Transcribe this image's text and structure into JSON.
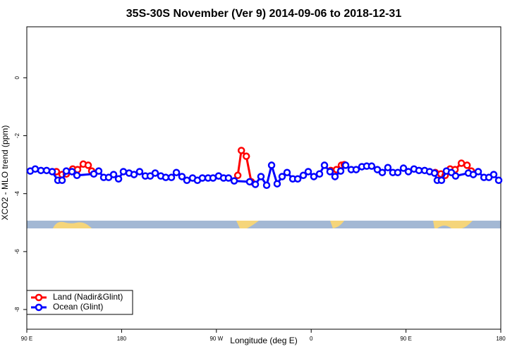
{
  "chart_data": {
    "type": "line",
    "title": "35S-30S November (Ver 9)   2014-09-06 to 2018-12-31",
    "x_label": "Longitude (deg E)",
    "y_label": "XCO2 - MLO trend (ppm)",
    "xlim": [
      90,
      540
    ],
    "xticks": [
      {
        "value": 90,
        "label": "90 E"
      },
      {
        "value": 180,
        "label": "180"
      },
      {
        "value": 270,
        "label": "90 W"
      },
      {
        "value": 360,
        "label": "0"
      },
      {
        "value": 450,
        "label": "90 E"
      },
      {
        "value": 540,
        "label": "180"
      }
    ],
    "ylim": [
      -8.68,
      1.76
    ],
    "yticks": [
      0,
      -2,
      -4,
      -6,
      -8
    ],
    "legend": "bottom-left",
    "series": [
      {
        "name": "Land (Nadir&Glint)",
        "color": "#ff0000",
        "x": [
          118.1,
          123.5,
          127.5,
          133.6,
          138.2,
          143.6,
          148.3,
          151.6,
          null,
          290.3,
          293.7,
          298.4,
          303.1,
          null,
          378.6,
          384,
          388.7,
          391.4,
          null,
          477.8,
          483.1,
          487.2,
          491.9,
          496.6,
          502.6,
          508,
          512
        ],
        "values": [
          -3.24,
          -3.34,
          -3.32,
          -3.15,
          -3.17,
          -2.98,
          -3.02,
          -3.22,
          null,
          -3.37,
          -2.51,
          -2.71,
          -3.59,
          null,
          -3.2,
          -3.17,
          -3.02,
          -3.0,
          null,
          -3.27,
          -3.32,
          -3.37,
          -3.15,
          -3.17,
          -2.95,
          -3.02,
          -3.22
        ]
      },
      {
        "name": "Ocean (Glint)",
        "color": "#0000ff",
        "x": [
          93.3,
          98,
          103.4,
          108.8,
          114.1,
          119.5,
          123.5,
          127.5,
          132.9,
          137.6,
          153.6,
          158.3,
          163,
          167.7,
          172.4,
          177.1,
          181.7,
          187.1,
          191.8,
          197.1,
          202.5,
          207.2,
          211.9,
          217.2,
          221.9,
          227.3,
          232,
          237.3,
          242,
          247.4,
          252,
          256.7,
          262.1,
          266.8,
          272.1,
          276.8,
          281.5,
          286.9,
          301.6,
          307,
          312.3,
          317.7,
          322.4,
          327.7,
          332.4,
          337.1,
          342.5,
          347.2,
          352.5,
          357.2,
          362.5,
          367.9,
          372.6,
          377.9,
          382.6,
          388,
          392.7,
          398,
          402.7,
          408.1,
          412.7,
          417.4,
          422.8,
          427.5,
          432.8,
          437.5,
          442.2,
          447.6,
          452.3,
          457.6,
          462.3,
          467.7,
          472.4,
          477.1,
          479.7,
          483.7,
          488.4,
          493.1,
          497.1,
          509.2,
          513.9,
          518.6,
          524,
          528.7,
          533.3,
          538
        ],
        "values": [
          -3.22,
          -3.15,
          -3.2,
          -3.2,
          -3.24,
          -3.54,
          -3.54,
          -3.22,
          -3.24,
          -3.37,
          -3.32,
          -3.22,
          -3.44,
          -3.44,
          -3.34,
          -3.49,
          -3.24,
          -3.29,
          -3.34,
          -3.24,
          -3.39,
          -3.39,
          -3.29,
          -3.39,
          -3.44,
          -3.44,
          -3.27,
          -3.41,
          -3.54,
          -3.46,
          -3.54,
          -3.46,
          -3.46,
          -3.46,
          -3.39,
          -3.46,
          -3.46,
          -3.56,
          -3.59,
          -3.68,
          -3.41,
          -3.71,
          -3.02,
          -3.66,
          -3.41,
          -3.27,
          -3.49,
          -3.49,
          -3.37,
          -3.24,
          -3.41,
          -3.32,
          -3.02,
          -3.24,
          -3.41,
          -3.22,
          -3.02,
          -3.17,
          -3.17,
          -3.07,
          -3.05,
          -3.05,
          -3.17,
          -3.27,
          -3.1,
          -3.27,
          -3.27,
          -3.12,
          -3.24,
          -3.15,
          -3.2,
          -3.2,
          -3.24,
          -3.29,
          -3.54,
          -3.54,
          -3.22,
          -3.27,
          -3.39,
          -3.29,
          -3.34,
          -3.24,
          -3.44,
          -3.44,
          -3.34,
          -3.54
        ]
      }
    ]
  }
}
